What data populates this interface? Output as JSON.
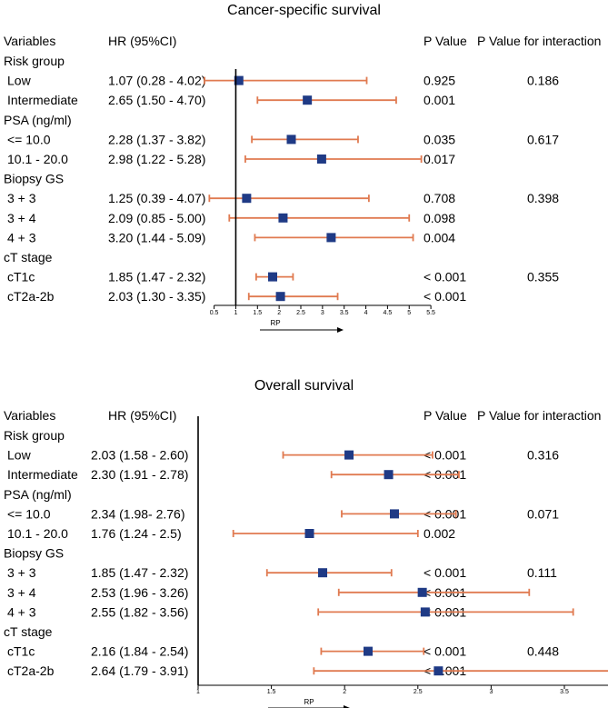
{
  "chart_data": [
    {
      "type": "forest",
      "title": "Cancer-specific survival",
      "headers": {
        "variables": "Variables",
        "hr": "HR (95%CI)",
        "p": "P Value",
        "p_int": "P Value for interaction"
      },
      "xlabel": "RP",
      "xlim": [
        0.5,
        5.5
      ],
      "ref_line": 1,
      "xticks": [
        0.5,
        1,
        1.5,
        2,
        2.5,
        3,
        3.5,
        4,
        4.5,
        5,
        5.5
      ],
      "xtick_labels": [
        "0.5",
        "1",
        "1.5",
        "2",
        "2.5",
        "3",
        "3.5",
        "4",
        "4.5",
        "5",
        "5.5"
      ],
      "groups": [
        {
          "label": "Risk group",
          "p_int": "0.186",
          "rows": [
            {
              "label": "Low",
              "hr_text": "1.07 (0.28 - 4.02)",
              "hr": 1.07,
              "lo": 0.28,
              "hi": 4.02,
              "p": "0.925"
            },
            {
              "label": "Intermediate",
              "hr_text": "2.65 (1.50 - 4.70)",
              "hr": 2.65,
              "lo": 1.5,
              "hi": 4.7,
              "p": "0.001"
            }
          ]
        },
        {
          "label": "PSA (ng/ml)",
          "p_int": "0.617",
          "rows": [
            {
              "label": "<= 10.0",
              "hr_text": "2.28 (1.37 - 3.82)",
              "hr": 2.28,
              "lo": 1.37,
              "hi": 3.82,
              "p": "0.035"
            },
            {
              "label": "10.1 - 20.0",
              "hr_text": "2.98 (1.22 - 5.28)",
              "hr": 2.98,
              "lo": 1.22,
              "hi": 5.28,
              "p": "0.017"
            }
          ]
        },
        {
          "label": "Biopsy GS",
          "p_int": "0.398",
          "rows": [
            {
              "label": "3 + 3",
              "hr_text": "1.25 (0.39 - 4.07)",
              "hr": 1.25,
              "lo": 0.39,
              "hi": 4.07,
              "p": "0.708"
            },
            {
              "label": "3 + 4",
              "hr_text": "2.09 (0.85 - 5.00)",
              "hr": 2.09,
              "lo": 0.85,
              "hi": 5.0,
              "p": "0.098"
            },
            {
              "label": "4 + 3",
              "hr_text": "3.20 (1.44 - 5.09)",
              "hr": 3.2,
              "lo": 1.44,
              "hi": 5.09,
              "p": "0.004"
            }
          ]
        },
        {
          "label": "cT stage",
          "p_int": "0.355",
          "rows": [
            {
              "label": "cT1c",
              "hr_text": "1.85 (1.47 - 2.32)",
              "hr": 1.85,
              "lo": 1.47,
              "hi": 2.32,
              "p": "< 0.001"
            },
            {
              "label": "cT2a-2b",
              "hr_text": "2.03 (1.30 - 3.35)",
              "hr": 2.03,
              "lo": 1.3,
              "hi": 3.35,
              "p": "< 0.001"
            }
          ]
        }
      ]
    },
    {
      "type": "forest",
      "title": "Overall survival",
      "headers": {
        "variables": "Variables",
        "hr": "HR (95%CI)",
        "p": "P Value",
        "p_int": "P Value for interaction"
      },
      "xlabel": "RP",
      "xlim": [
        1,
        4
      ],
      "ref_line": 1,
      "xticks": [
        1,
        1.5,
        2,
        2.5,
        3,
        3.5,
        4
      ],
      "xtick_labels": [
        "1",
        "1.5",
        "2",
        "2.5",
        "3",
        "3.5",
        "4"
      ],
      "groups": [
        {
          "label": "Risk group",
          "p_int": "0.316",
          "rows": [
            {
              "label": "Low",
              "hr_text": "2.03 (1.58 - 2.60)",
              "hr": 2.03,
              "lo": 1.58,
              "hi": 2.6,
              "p": "< 0.001"
            },
            {
              "label": "Intermediate",
              "hr_text": "2.30 (1.91 - 2.78)",
              "hr": 2.3,
              "lo": 1.91,
              "hi": 2.78,
              "p": "< 0.001"
            }
          ]
        },
        {
          "label": "PSA (ng/ml)",
          "p_int": "0.071",
          "rows": [
            {
              "label": "<= 10.0",
              "hr_text": "2.34 (1.98- 2.76)",
              "hr": 2.34,
              "lo": 1.98,
              "hi": 2.76,
              "p": "< 0.001"
            },
            {
              "label": "10.1 - 20.0",
              "hr_text": "1.76 (1.24 - 2.5)",
              "hr": 1.76,
              "lo": 1.24,
              "hi": 2.5,
              "p": "0.002"
            }
          ]
        },
        {
          "label": "Biopsy GS",
          "p_int": "0.111",
          "rows": [
            {
              "label": "3 + 3",
              "hr_text": "1.85 (1.47 - 2.32)",
              "hr": 1.85,
              "lo": 1.47,
              "hi": 2.32,
              "p": "< 0.001"
            },
            {
              "label": "3 + 4",
              "hr_text": "2.53 (1.96 - 3.26)",
              "hr": 2.53,
              "lo": 1.96,
              "hi": 3.26,
              "p": "< 0.001"
            },
            {
              "label": "4 + 3",
              "hr_text": "2.55 (1.82 - 3.56)",
              "hr": 2.55,
              "lo": 1.82,
              "hi": 3.56,
              "p": "< 0.001"
            }
          ]
        },
        {
          "label": "cT stage",
          "p_int": "0.448",
          "rows": [
            {
              "label": "cT1c",
              "hr_text": "2.16 (1.84 - 2.54)",
              "hr": 2.16,
              "lo": 1.84,
              "hi": 2.54,
              "p": "< 0.001"
            },
            {
              "label": "cT2a-2b",
              "hr_text": "2.64 (1.79 - 3.91)",
              "hr": 2.64,
              "lo": 1.79,
              "hi": 3.91,
              "p": "< 0.001"
            }
          ]
        }
      ]
    }
  ],
  "colors": {
    "ci_line": "#e07a50",
    "marker": "#1f3a85",
    "axis": "#000000"
  }
}
